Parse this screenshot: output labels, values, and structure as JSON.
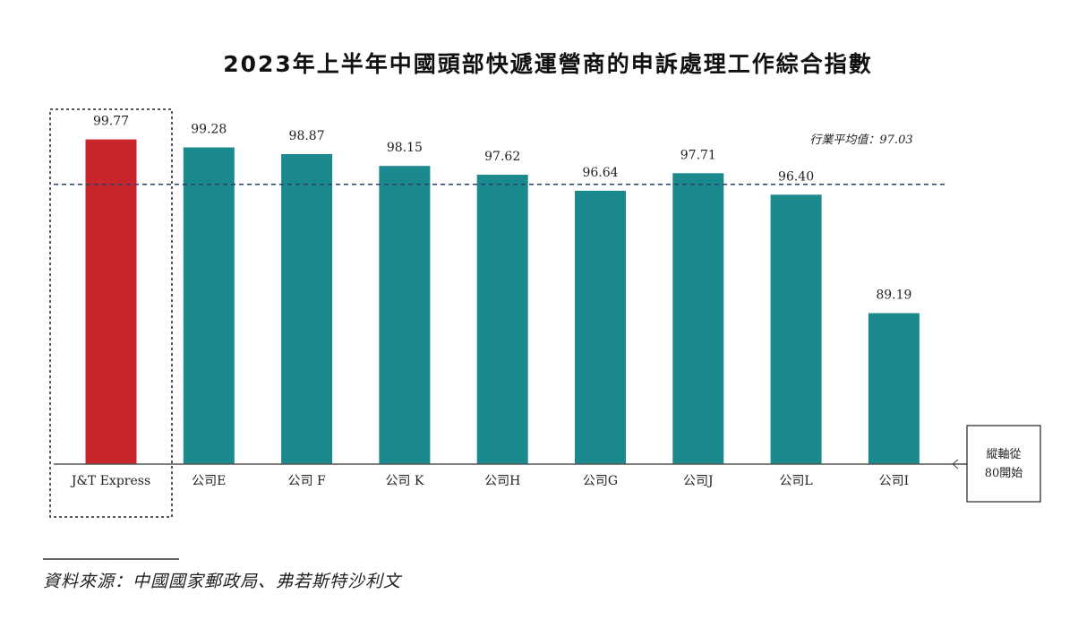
{
  "chart_data": {
    "type": "bar",
    "title": "2023年上半年中國頭部快遞運營商的申訴處理工作綜合指數",
    "categories": [
      "J&T Express",
      "公司E",
      "公司 F",
      "公司 K",
      "公司H",
      "公司G",
      "公司J",
      "公司L",
      "公司I"
    ],
    "values": [
      99.77,
      99.28,
      98.87,
      98.15,
      97.62,
      96.64,
      97.71,
      96.4,
      89.19
    ],
    "value_labels": [
      "99.77",
      "99.28",
      "98.87",
      "98.15",
      "97.62",
      "96.64",
      "97.71",
      "96.40",
      "89.19"
    ],
    "highlight_index": 0,
    "ylim": [
      80,
      101
    ],
    "average": {
      "value": 97.03,
      "label": "行業平均值：97.03"
    },
    "axis_note": [
      "縱軸從",
      "80開始"
    ],
    "source": "資料來源：中國國家郵政局、弗若斯特沙利文",
    "colors": {
      "highlight": "#c8262b",
      "bar": "#1b8a8f",
      "avg_line": "#2a3f6e",
      "axis": "#555555"
    },
    "grid": false
  }
}
